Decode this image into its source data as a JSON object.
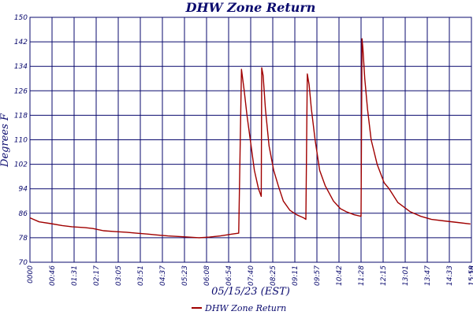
{
  "chart_data": {
    "type": "line",
    "title": "DHW Zone Return",
    "xlabel": "05/15/23 (EST)",
    "ylabel": "Degrees F",
    "ylim": [
      70,
      150
    ],
    "yticks": [
      70,
      78,
      86,
      94,
      102,
      110,
      118,
      126,
      134,
      142,
      150
    ],
    "xlim": [
      "00:00",
      "16:00"
    ],
    "xtick_labels": [
      "0000",
      "00:46",
      "01:31",
      "02:17",
      "03:05",
      "03:51",
      "04:37",
      "05:23",
      "06:08",
      "06:54",
      "07:40",
      "08:25",
      "09:11",
      "09:57",
      "10:42",
      "11:28",
      "12:15",
      "13:01",
      "13:47",
      "14:33",
      "15:19",
      "15:58"
    ],
    "grid": true,
    "legend_position": "bottom",
    "series": [
      {
        "name": "DHW Zone Return",
        "color": "#a00000",
        "x": [
          "00:00",
          "00:20",
          "00:46",
          "01:10",
          "01:31",
          "02:00",
          "02:17",
          "02:40",
          "03:05",
          "03:30",
          "03:51",
          "04:15",
          "04:37",
          "05:00",
          "05:23",
          "05:45",
          "06:08",
          "06:30",
          "06:54",
          "07:20",
          "07:34",
          "07:40",
          "07:46",
          "07:52",
          "08:00",
          "08:08",
          "08:17",
          "08:23",
          "08:24",
          "08:27",
          "08:32",
          "08:40",
          "08:50",
          "09:00",
          "09:11",
          "09:25",
          "09:40",
          "09:55",
          "10:00",
          "10:03",
          "10:07",
          "10:12",
          "10:20",
          "10:30",
          "10:42",
          "11:00",
          "11:15",
          "11:28",
          "11:45",
          "12:00",
          "12:02",
          "12:04",
          "12:08",
          "12:14",
          "12:22",
          "12:35",
          "12:50",
          "13:01",
          "13:20",
          "13:47",
          "14:10",
          "14:33",
          "15:00",
          "15:30",
          "15:58"
        ],
        "y": [
          84.5,
          83.2,
          82.6,
          82.0,
          81.6,
          81.3,
          81.0,
          80.3,
          80.0,
          79.8,
          79.5,
          79.2,
          78.9,
          78.6,
          78.4,
          78.2,
          78.0,
          78.2,
          78.6,
          79.2,
          79.5,
          133.0,
          126.0,
          118.0,
          109.0,
          100.0,
          94.0,
          91.5,
          133.5,
          131.0,
          120.0,
          108.0,
          100.0,
          95.0,
          90.0,
          87.0,
          85.5,
          84.5,
          84.0,
          131.5,
          128.0,
          120.0,
          110.0,
          100.0,
          95.0,
          90.0,
          87.5,
          86.5,
          85.5,
          85.0,
          143.0,
          140.0,
          130.0,
          120.0,
          110.0,
          102.0,
          96.0,
          94.0,
          89.5,
          86.5,
          85.0,
          84.0,
          83.5,
          83.0,
          82.5
        ]
      }
    ]
  }
}
